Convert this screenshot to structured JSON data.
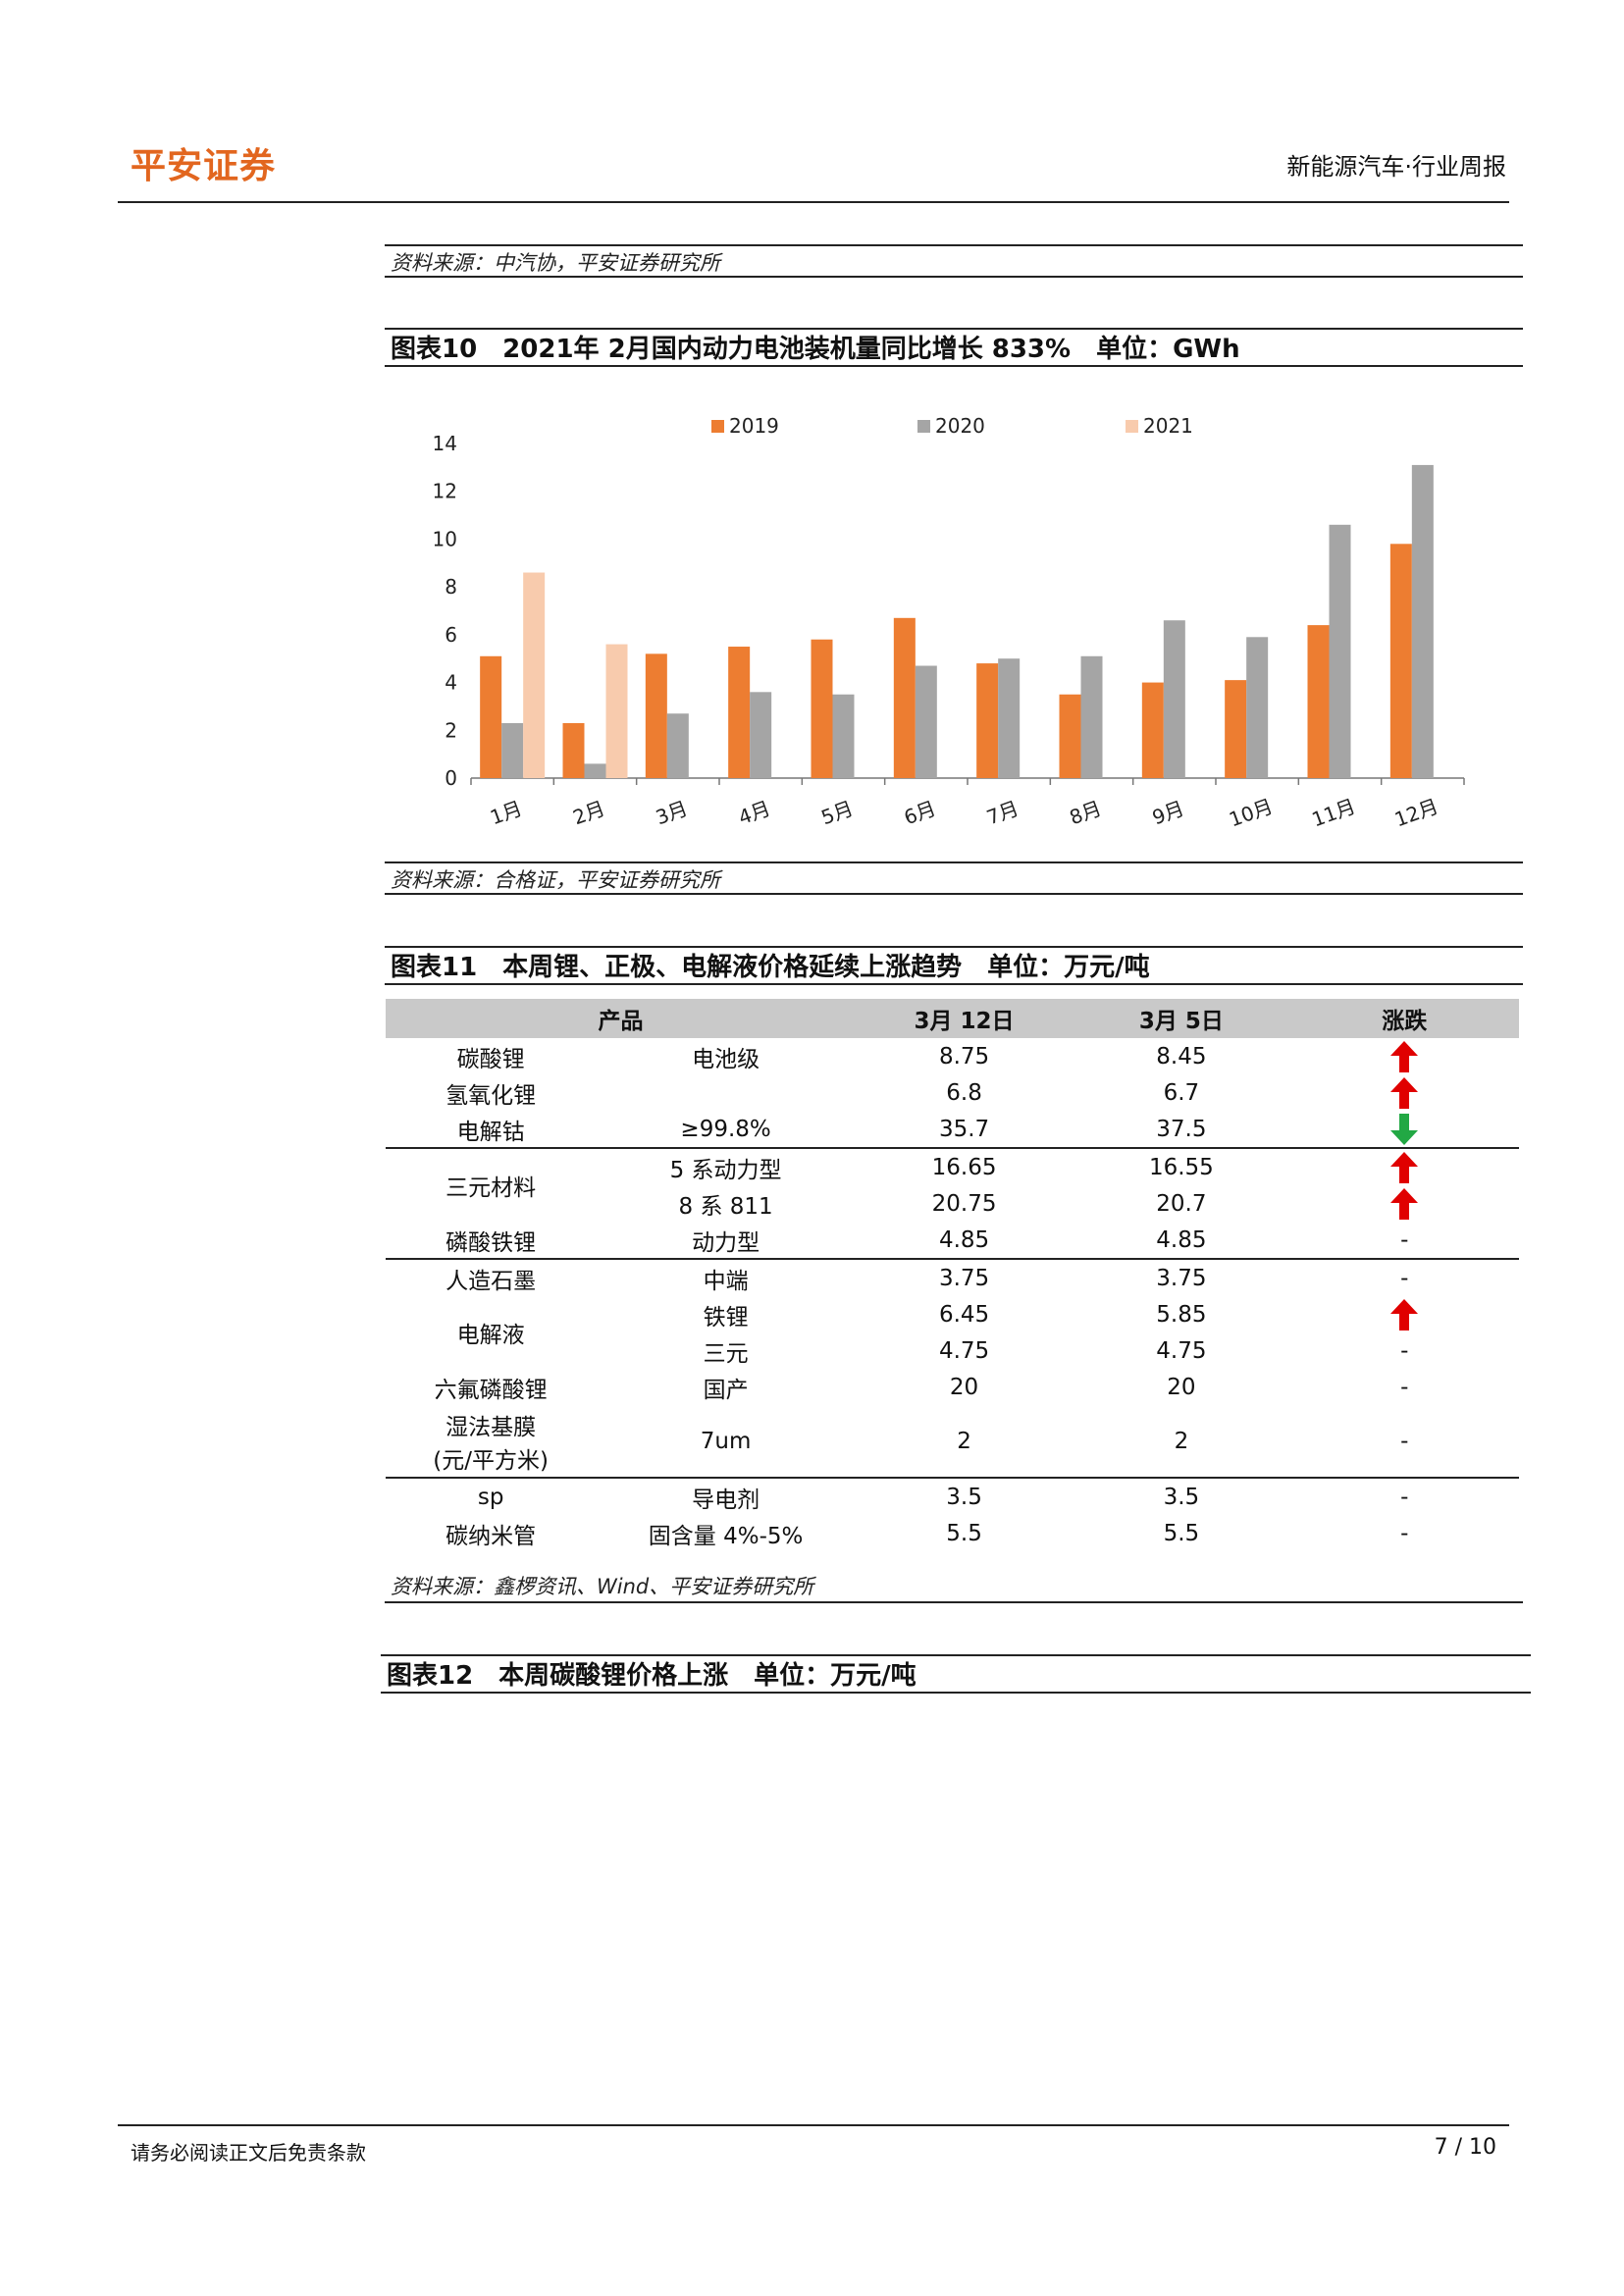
{
  "header": {
    "logo": "平安证券",
    "doc_type": "新能源汽车·行业周报"
  },
  "source1": "资料来源：中汽协，平安证券研究所",
  "figure10": {
    "title": "图表10　2021年 2月国内动力电池装机量同比增长 833%　单位：GWh",
    "source": "资料来源：合格证，平安证券研究所"
  },
  "chart_data": {
    "type": "bar",
    "categories": [
      "1月",
      "2月",
      "3月",
      "4月",
      "5月",
      "6月",
      "7月",
      "8月",
      "9月",
      "10月",
      "11月",
      "12月"
    ],
    "series": [
      {
        "name": "2019",
        "color": "#ed7d31",
        "values": [
          5.1,
          2.3,
          5.2,
          5.5,
          5.8,
          6.7,
          4.8,
          3.5,
          4.0,
          4.1,
          6.4,
          9.8
        ]
      },
      {
        "name": "2020",
        "color": "#a5a5a5",
        "values": [
          2.3,
          0.6,
          2.7,
          3.6,
          3.5,
          4.7,
          5.0,
          5.1,
          6.6,
          5.9,
          10.6,
          13.1
        ]
      },
      {
        "name": "2021",
        "color": "#f8cbad",
        "values": [
          8.6,
          5.6,
          null,
          null,
          null,
          null,
          null,
          null,
          null,
          null,
          null,
          null
        ]
      }
    ],
    "ylim": [
      0,
      14
    ],
    "yticks": [
      0,
      2,
      4,
      6,
      8,
      10,
      12,
      14
    ],
    "legend": "top",
    "grid": false
  },
  "figure11": {
    "title": "图表11　本周锂、正极、电解液价格延续上涨趋势　单位：万元/吨",
    "headers": [
      "产品",
      "3月 12日",
      "3月 5日",
      "涨跌"
    ],
    "rows": [
      {
        "product": "碳酸锂",
        "spec": "电池级",
        "mar12": "8.75",
        "mar5": "8.45",
        "trend": "up"
      },
      {
        "product": "氢氧化锂",
        "spec": "",
        "mar12": "6.8",
        "mar5": "6.7",
        "trend": "up"
      },
      {
        "product": "电解钴",
        "spec": "≥99.8%",
        "mar12": "35.7",
        "mar5": "37.5",
        "trend": "down"
      },
      {
        "product": "三元材料",
        "spec": "5 系动力型",
        "mar12": "16.65",
        "mar5": "16.55",
        "trend": "up"
      },
      {
        "product": "",
        "spec": "8 系 811",
        "mar12": "20.75",
        "mar5": "20.7",
        "trend": "up"
      },
      {
        "product": "磷酸铁锂",
        "spec": "动力型",
        "mar12": "4.85",
        "mar5": "4.85",
        "trend": "-"
      },
      {
        "product": "人造石墨",
        "spec": "中端",
        "mar12": "3.75",
        "mar5": "3.75",
        "trend": "-"
      },
      {
        "product": "电解液",
        "spec": "铁锂",
        "mar12": "6.45",
        "mar5": "5.85",
        "trend": "up"
      },
      {
        "product": "",
        "spec": "三元",
        "mar12": "4.75",
        "mar5": "4.75",
        "trend": "-"
      },
      {
        "product": "六氟磷酸锂",
        "spec": "国产",
        "mar12": "20",
        "mar5": "20",
        "trend": "-"
      },
      {
        "product": "湿法基膜",
        "product2": "(元/平方米)",
        "spec": "7um",
        "mar12": "2",
        "mar5": "2",
        "trend": "-"
      },
      {
        "product": "sp",
        "spec": "导电剂",
        "mar12": "3.5",
        "mar5": "3.5",
        "trend": "-"
      },
      {
        "product": "碳纳米管",
        "spec": "固含量 4%-5%",
        "mar12": "5.5",
        "mar5": "5.5",
        "trend": "-"
      }
    ],
    "source": "资料来源：鑫椤资讯、Wind、平安证券研究所"
  },
  "figure12": {
    "title": "图表12　本周碳酸锂价格上涨　单位：万元/吨"
  },
  "footer": {
    "disclaimer": "请务必阅读正文后免责条款",
    "page": "7 / 10"
  }
}
